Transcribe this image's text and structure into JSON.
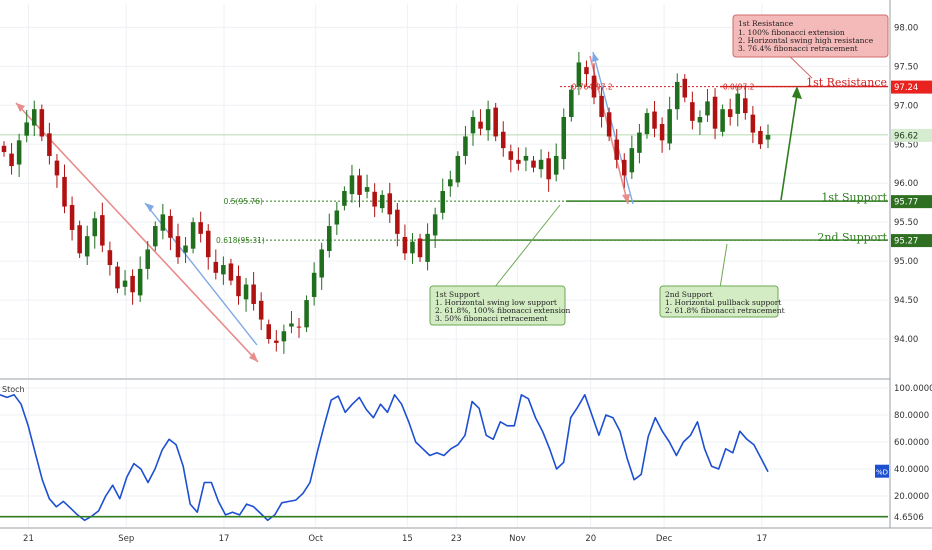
{
  "colors": {
    "up": "#1f6f1f",
    "down": "#b01212",
    "wick": "#333333",
    "grid": "#eef0f4",
    "axis_text": "#333333",
    "support": "#2f7d1f",
    "resistance": "#d21f1f",
    "stoch": "#1d4fd1",
    "price_tag": "#2f6f22",
    "bubble_red_bg": "#f4b9b9",
    "bubble_red_border": "#d06b6b",
    "bubble_green_bg": "#d3ecc4",
    "bubble_green_border": "#6ea854"
  },
  "chart_data": [
    {
      "type": "candlestick",
      "title": "",
      "x_tick_labels": [
        "21",
        "Sep",
        "17",
        "Oct",
        "15",
        "23",
        "Nov",
        "20",
        "Dec",
        "17"
      ],
      "y_tick_labels": [
        "98.00",
        "97.50",
        "97.00",
        "96.50",
        "96.00",
        "95.50",
        "95.00",
        "94.50",
        "94.00"
      ],
      "ylim": [
        93.5,
        98.3
      ],
      "grid": true,
      "levels": [
        {
          "name": "1st Resistance",
          "value": 97.24,
          "tag": "97.24",
          "color": "resistance"
        },
        {
          "name": "1st Support",
          "value": 95.77,
          "tag": "95.77",
          "color": "support"
        },
        {
          "name": "2nd Support",
          "value": 95.27,
          "tag": "95.27",
          "color": "support"
        }
      ],
      "last_price": {
        "value": 96.62,
        "tag": "96.62"
      },
      "fib_labels": [
        {
          "text": "0.764(97.2",
          "x_bar": 79,
          "y": 97.24
        },
        {
          "text": "0.5(95.76)",
          "x_bar": 33,
          "y": 95.77
        },
        {
          "text": "0.618(95.31)",
          "x_bar": 32,
          "y": 95.27
        },
        {
          "text": "0.0(97.2",
          "x_bar": 99,
          "y": 97.24
        }
      ],
      "closes": [
        96.4,
        96.22,
        96.55,
        96.78,
        96.95,
        96.6,
        96.35,
        96.1,
        95.7,
        95.4,
        95.1,
        95.32,
        95.55,
        95.2,
        94.95,
        94.65,
        94.75,
        94.6,
        94.9,
        95.15,
        95.45,
        95.6,
        95.3,
        95.05,
        95.2,
        95.5,
        95.35,
        95.05,
        94.85,
        94.95,
        94.75,
        94.55,
        94.7,
        94.45,
        94.25,
        94.0,
        93.95,
        94.1,
        94.2,
        94.15,
        94.5,
        94.85,
        95.15,
        95.45,
        95.65,
        95.9,
        96.1,
        95.85,
        95.95,
        95.7,
        95.85,
        95.6,
        95.35,
        95.1,
        95.25,
        95.05,
        95.35,
        95.6,
        95.9,
        96.05,
        96.35,
        96.6,
        96.85,
        96.7,
        96.95,
        96.6,
        96.45,
        96.3,
        96.25,
        96.35,
        96.2,
        96.3,
        96.05,
        96.35,
        96.85,
        97.2,
        97.55,
        97.4,
        97.1,
        96.85,
        96.6,
        96.3,
        96.1,
        96.45,
        96.65,
        96.9,
        96.7,
        96.55,
        96.95,
        97.3,
        97.1,
        96.8,
        96.85,
        97.05,
        96.7,
        96.95,
        96.85,
        97.15,
        96.9,
        96.65,
        96.5,
        96.62
      ],
      "x_ticks_at_bar": [
        4,
        20,
        36,
        51,
        66,
        74,
        84,
        96,
        108,
        124
      ]
    },
    {
      "type": "line",
      "title": "",
      "legend_label": "Stoch",
      "series_name": "%D",
      "y_tick_labels": [
        "100.0000",
        "80.0000",
        "60.0000",
        "40.0000",
        "20.0000"
      ],
      "ylim": [
        0,
        100
      ],
      "level_line": {
        "value": 4.6506,
        "tag": "4.6506"
      },
      "values": [
        95,
        93,
        95,
        88,
        72,
        52,
        32,
        18,
        12,
        16,
        11,
        6,
        2,
        5,
        9,
        20,
        28,
        18,
        34,
        44,
        40,
        30,
        40,
        54,
        62,
        58,
        42,
        14,
        8,
        30,
        30,
        16,
        6,
        8,
        6,
        14,
        12,
        7,
        2,
        6,
        15,
        16,
        17,
        22,
        30,
        52,
        72,
        91,
        94,
        82,
        88,
        93,
        84,
        78,
        88,
        82,
        95,
        88,
        75,
        60,
        55,
        50,
        52,
        50,
        55,
        58,
        65,
        90,
        85,
        65,
        62,
        75,
        72,
        72,
        95,
        92,
        78,
        68,
        55,
        40,
        45,
        78,
        86,
        95,
        80,
        65,
        80,
        78,
        68,
        48,
        32,
        36,
        64,
        78,
        68,
        60,
        50,
        60,
        65,
        75,
        55,
        42,
        40,
        55,
        52,
        68,
        62,
        58,
        48,
        38
      ]
    }
  ],
  "annotations": {
    "resistance_box": {
      "title": "1st Resistance",
      "lines": [
        "1. 100% fibonacci extension",
        "2. Horizontal swing high resistance",
        "3. 76.4% fibonacci retracement"
      ]
    },
    "support1_box": {
      "title": "1st Support",
      "lines": [
        "1. Horizontal swing low support",
        "2. 61.8%, 100% fibonacci extension",
        "3. 50% fibonacci retracement"
      ]
    },
    "support2_box": {
      "title": "2nd Support",
      "lines": [
        "1. Horizontal pullback support",
        "2. 61.8% fibonacci retracement"
      ]
    },
    "resistance_label": "1st Resistance",
    "support1_label": "1st Support",
    "support2_label": "2nd Support"
  }
}
